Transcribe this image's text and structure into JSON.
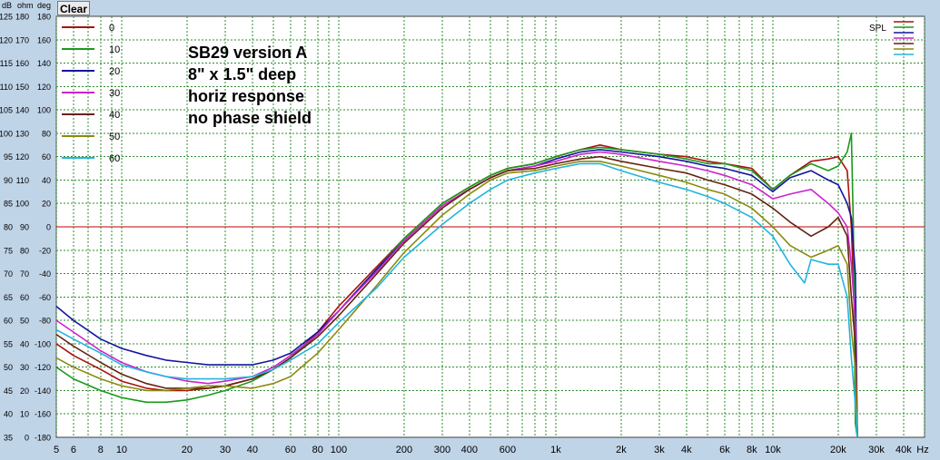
{
  "toolbar": {
    "clear_label": "Clear"
  },
  "annotation": [
    "SB29 version A",
    "8\" x 1.5\" deep",
    "horiz response",
    "no phase shield"
  ],
  "colors": {
    "background": "#c0d4e8",
    "plot_bg": "#ffffff",
    "grid": "#2e8b2e",
    "reference_line": "#c00000"
  },
  "chart_data": {
    "type": "line",
    "x_scale": "log",
    "xlim": [
      5,
      50000
    ],
    "x_ticks": [
      5,
      6,
      8,
      10,
      20,
      30,
      40,
      60,
      80,
      100,
      200,
      300,
      400,
      600,
      1000,
      2000,
      3000,
      4000,
      6000,
      8000,
      10000,
      20000,
      30000,
      40000
    ],
    "x_tick_labels": [
      "5",
      "6",
      "8",
      "10",
      "20",
      "30",
      "40",
      "60",
      "80",
      "100",
      "200",
      "300",
      "400",
      "600",
      "1k",
      "2k",
      "3k",
      "4k",
      "6k",
      "8k",
      "10k",
      "20k",
      "30k",
      "40k"
    ],
    "x_unit": "Hz",
    "axis_headers": [
      "dB",
      "ohm",
      "deg"
    ],
    "ylim": [
      35,
      125
    ],
    "y_tick_labels": {
      "dB": [
        "125",
        "120",
        "115",
        "110",
        "105",
        "100",
        "95",
        "90",
        "85",
        "80",
        "75",
        "70",
        "65",
        "60",
        "55",
        "50",
        "45",
        "40",
        "35"
      ],
      "ohm": [
        "180",
        "170",
        "160",
        "150",
        "140",
        "130",
        "120",
        "110",
        "100",
        "90",
        "80",
        "70",
        "60",
        "50",
        "40",
        "30",
        "20",
        "10",
        "0"
      ],
      "deg": [
        "180",
        "160",
        "140",
        "120",
        "100",
        "80",
        "60",
        "40",
        "20",
        "0",
        "-20",
        "-40",
        "-60",
        "-80",
        "-100",
        "-120",
        "-140",
        "-160",
        "-180"
      ]
    },
    "reference_line_db": 80,
    "grid": true,
    "legend_position": "top-left",
    "legend_right_label": "SPL",
    "series": [
      {
        "name": "0",
        "color": "#aa1111",
        "points": [
          [
            5,
            55
          ],
          [
            6,
            52.5
          ],
          [
            8,
            49.5
          ],
          [
            10,
            47
          ],
          [
            13,
            45.5
          ],
          [
            16,
            45
          ],
          [
            20,
            45
          ],
          [
            25,
            45.5
          ],
          [
            30,
            46
          ],
          [
            40,
            47.5
          ],
          [
            50,
            49.5
          ],
          [
            60,
            52
          ],
          [
            80,
            57.5
          ],
          [
            100,
            63
          ],
          [
            150,
            71.5
          ],
          [
            200,
            77.5
          ],
          [
            300,
            85
          ],
          [
            400,
            88.5
          ],
          [
            500,
            91
          ],
          [
            600,
            92.5
          ],
          [
            800,
            93.5
          ],
          [
            1000,
            95
          ],
          [
            1300,
            96.5
          ],
          [
            1600,
            97.5
          ],
          [
            2000,
            96.5
          ],
          [
            3000,
            95.5
          ],
          [
            4000,
            95
          ],
          [
            5000,
            94
          ],
          [
            6000,
            93.5
          ],
          [
            8000,
            92.5
          ],
          [
            10000,
            88
          ],
          [
            12000,
            91
          ],
          [
            15000,
            94
          ],
          [
            18000,
            94.5
          ],
          [
            20000,
            95
          ],
          [
            22000,
            92
          ],
          [
            23000,
            80
          ],
          [
            24000,
            56
          ],
          [
            24500,
            35
          ]
        ]
      },
      {
        "name": "10",
        "color": "#1a9a1a",
        "points": [
          [
            5,
            50
          ],
          [
            6,
            47.5
          ],
          [
            8,
            45
          ],
          [
            10,
            43.5
          ],
          [
            13,
            42.5
          ],
          [
            16,
            42.5
          ],
          [
            20,
            43
          ],
          [
            25,
            44
          ],
          [
            30,
            45
          ],
          [
            40,
            47
          ],
          [
            50,
            49.5
          ],
          [
            60,
            52
          ],
          [
            80,
            57
          ],
          [
            100,
            62
          ],
          [
            150,
            71
          ],
          [
            200,
            77.5
          ],
          [
            300,
            85
          ],
          [
            400,
            88.5
          ],
          [
            500,
            91
          ],
          [
            600,
            92.5
          ],
          [
            800,
            93.5
          ],
          [
            1000,
            95
          ],
          [
            1300,
            96.5
          ],
          [
            1600,
            97
          ],
          [
            2000,
            96.5
          ],
          [
            3000,
            95.5
          ],
          [
            4000,
            94.5
          ],
          [
            5000,
            93.5
          ],
          [
            6000,
            93.5
          ],
          [
            8000,
            92
          ],
          [
            10000,
            88
          ],
          [
            12000,
            91
          ],
          [
            15000,
            93.5
          ],
          [
            18000,
            92
          ],
          [
            20000,
            93
          ],
          [
            22000,
            96
          ],
          [
            23000,
            100
          ],
          [
            23500,
            80
          ],
          [
            24000,
            38
          ],
          [
            24500,
            35
          ]
        ]
      },
      {
        "name": "20",
        "color": "#1414a0",
        "points": [
          [
            5,
            63
          ],
          [
            6,
            60
          ],
          [
            8,
            56
          ],
          [
            10,
            54
          ],
          [
            13,
            52.5
          ],
          [
            16,
            51.5
          ],
          [
            20,
            51
          ],
          [
            25,
            50.5
          ],
          [
            30,
            50.5
          ],
          [
            40,
            50.5
          ],
          [
            50,
            51.5
          ],
          [
            60,
            53
          ],
          [
            80,
            57.5
          ],
          [
            100,
            62
          ],
          [
            150,
            71
          ],
          [
            200,
            77
          ],
          [
            300,
            84.5
          ],
          [
            400,
            88
          ],
          [
            500,
            90.5
          ],
          [
            600,
            92
          ],
          [
            800,
            93
          ],
          [
            1000,
            94.5
          ],
          [
            1300,
            96
          ],
          [
            1600,
            96.5
          ],
          [
            2000,
            96
          ],
          [
            3000,
            95
          ],
          [
            4000,
            94
          ],
          [
            5000,
            93
          ],
          [
            6000,
            92.5
          ],
          [
            8000,
            91
          ],
          [
            10000,
            87.5
          ],
          [
            12000,
            90.5
          ],
          [
            15000,
            92
          ],
          [
            18000,
            90
          ],
          [
            20000,
            89
          ],
          [
            22000,
            85
          ],
          [
            23000,
            82
          ],
          [
            24000,
            70
          ],
          [
            24500,
            35
          ]
        ]
      },
      {
        "name": "30",
        "color": "#cc22cc",
        "points": [
          [
            5,
            60
          ],
          [
            6,
            57.5
          ],
          [
            8,
            53.5
          ],
          [
            10,
            51
          ],
          [
            13,
            49
          ],
          [
            16,
            48
          ],
          [
            20,
            47
          ],
          [
            25,
            46.5
          ],
          [
            30,
            47
          ],
          [
            40,
            48
          ],
          [
            50,
            50
          ],
          [
            60,
            52.5
          ],
          [
            80,
            57
          ],
          [
            100,
            62
          ],
          [
            150,
            70.5
          ],
          [
            200,
            77
          ],
          [
            300,
            84.5
          ],
          [
            400,
            88
          ],
          [
            500,
            90.5
          ],
          [
            600,
            92
          ],
          [
            800,
            93
          ],
          [
            1000,
            94
          ],
          [
            1300,
            95.5
          ],
          [
            1600,
            96
          ],
          [
            2000,
            95.5
          ],
          [
            3000,
            94
          ],
          [
            4000,
            93
          ],
          [
            5000,
            92
          ],
          [
            6000,
            91
          ],
          [
            8000,
            89
          ],
          [
            10000,
            86
          ],
          [
            12000,
            87
          ],
          [
            15000,
            88
          ],
          [
            18000,
            85
          ],
          [
            20000,
            83
          ],
          [
            22000,
            80
          ],
          [
            23000,
            72
          ],
          [
            24000,
            60
          ],
          [
            24500,
            35
          ]
        ]
      },
      {
        "name": "40",
        "color": "#662211",
        "points": [
          [
            5,
            57
          ],
          [
            6,
            54.5
          ],
          [
            8,
            51
          ],
          [
            10,
            48.5
          ],
          [
            13,
            46.5
          ],
          [
            16,
            45.5
          ],
          [
            20,
            45.5
          ],
          [
            25,
            45.5
          ],
          [
            30,
            46
          ],
          [
            40,
            47.5
          ],
          [
            50,
            49.5
          ],
          [
            60,
            52
          ],
          [
            80,
            56.5
          ],
          [
            100,
            61
          ],
          [
            150,
            70
          ],
          [
            200,
            76.5
          ],
          [
            300,
            84
          ],
          [
            400,
            88
          ],
          [
            500,
            90.5
          ],
          [
            600,
            92
          ],
          [
            800,
            92.5
          ],
          [
            1000,
            93.5
          ],
          [
            1300,
            94.5
          ],
          [
            1600,
            95
          ],
          [
            2000,
            94
          ],
          [
            3000,
            92.5
          ],
          [
            4000,
            91.5
          ],
          [
            5000,
            90
          ],
          [
            6000,
            89
          ],
          [
            8000,
            87
          ],
          [
            10000,
            84
          ],
          [
            12000,
            81
          ],
          [
            15000,
            78
          ],
          [
            18000,
            80
          ],
          [
            20000,
            82
          ],
          [
            22000,
            78
          ],
          [
            23000,
            65
          ],
          [
            24000,
            55
          ],
          [
            24500,
            35
          ]
        ]
      },
      {
        "name": "50",
        "color": "#8a8a10",
        "points": [
          [
            5,
            52
          ],
          [
            6,
            50
          ],
          [
            8,
            47.5
          ],
          [
            10,
            46
          ],
          [
            13,
            45
          ],
          [
            16,
            45
          ],
          [
            20,
            45.5
          ],
          [
            25,
            46
          ],
          [
            30,
            46
          ],
          [
            40,
            45.5
          ],
          [
            50,
            46.5
          ],
          [
            60,
            48
          ],
          [
            80,
            53
          ],
          [
            100,
            58
          ],
          [
            150,
            67.5
          ],
          [
            200,
            74.5
          ],
          [
            300,
            82.5
          ],
          [
            400,
            87
          ],
          [
            500,
            90
          ],
          [
            600,
            91.5
          ],
          [
            800,
            92
          ],
          [
            1000,
            93
          ],
          [
            1300,
            94
          ],
          [
            1600,
            94
          ],
          [
            2000,
            93
          ],
          [
            3000,
            91
          ],
          [
            4000,
            89.5
          ],
          [
            5000,
            88
          ],
          [
            6000,
            87
          ],
          [
            8000,
            84
          ],
          [
            10000,
            80
          ],
          [
            12000,
            76
          ],
          [
            15000,
            73.5
          ],
          [
            18000,
            75
          ],
          [
            20000,
            76
          ],
          [
            22000,
            72
          ],
          [
            23000,
            58
          ],
          [
            24000,
            50
          ],
          [
            24500,
            35
          ]
        ]
      },
      {
        "name": "60",
        "color": "#22b4e0",
        "points": [
          [
            5,
            58
          ],
          [
            6,
            56
          ],
          [
            8,
            53
          ],
          [
            10,
            50.5
          ],
          [
            13,
            49
          ],
          [
            16,
            48
          ],
          [
            20,
            47.5
          ],
          [
            25,
            47.5
          ],
          [
            30,
            47.5
          ],
          [
            40,
            48
          ],
          [
            50,
            49.5
          ],
          [
            60,
            51.5
          ],
          [
            80,
            55
          ],
          [
            100,
            59.5
          ],
          [
            150,
            67
          ],
          [
            200,
            73.5
          ],
          [
            300,
            80.5
          ],
          [
            400,
            85
          ],
          [
            500,
            88
          ],
          [
            600,
            90
          ],
          [
            800,
            91.5
          ],
          [
            1000,
            92.5
          ],
          [
            1300,
            93.5
          ],
          [
            1600,
            93.5
          ],
          [
            2000,
            92
          ],
          [
            3000,
            89.5
          ],
          [
            4000,
            88
          ],
          [
            5000,
            86.5
          ],
          [
            6000,
            85
          ],
          [
            8000,
            82
          ],
          [
            10000,
            78
          ],
          [
            12000,
            72
          ],
          [
            14000,
            68
          ],
          [
            15000,
            73
          ],
          [
            18000,
            72
          ],
          [
            20000,
            72
          ],
          [
            22000,
            65
          ],
          [
            23000,
            52
          ],
          [
            24000,
            42
          ],
          [
            24500,
            35
          ]
        ]
      }
    ]
  }
}
